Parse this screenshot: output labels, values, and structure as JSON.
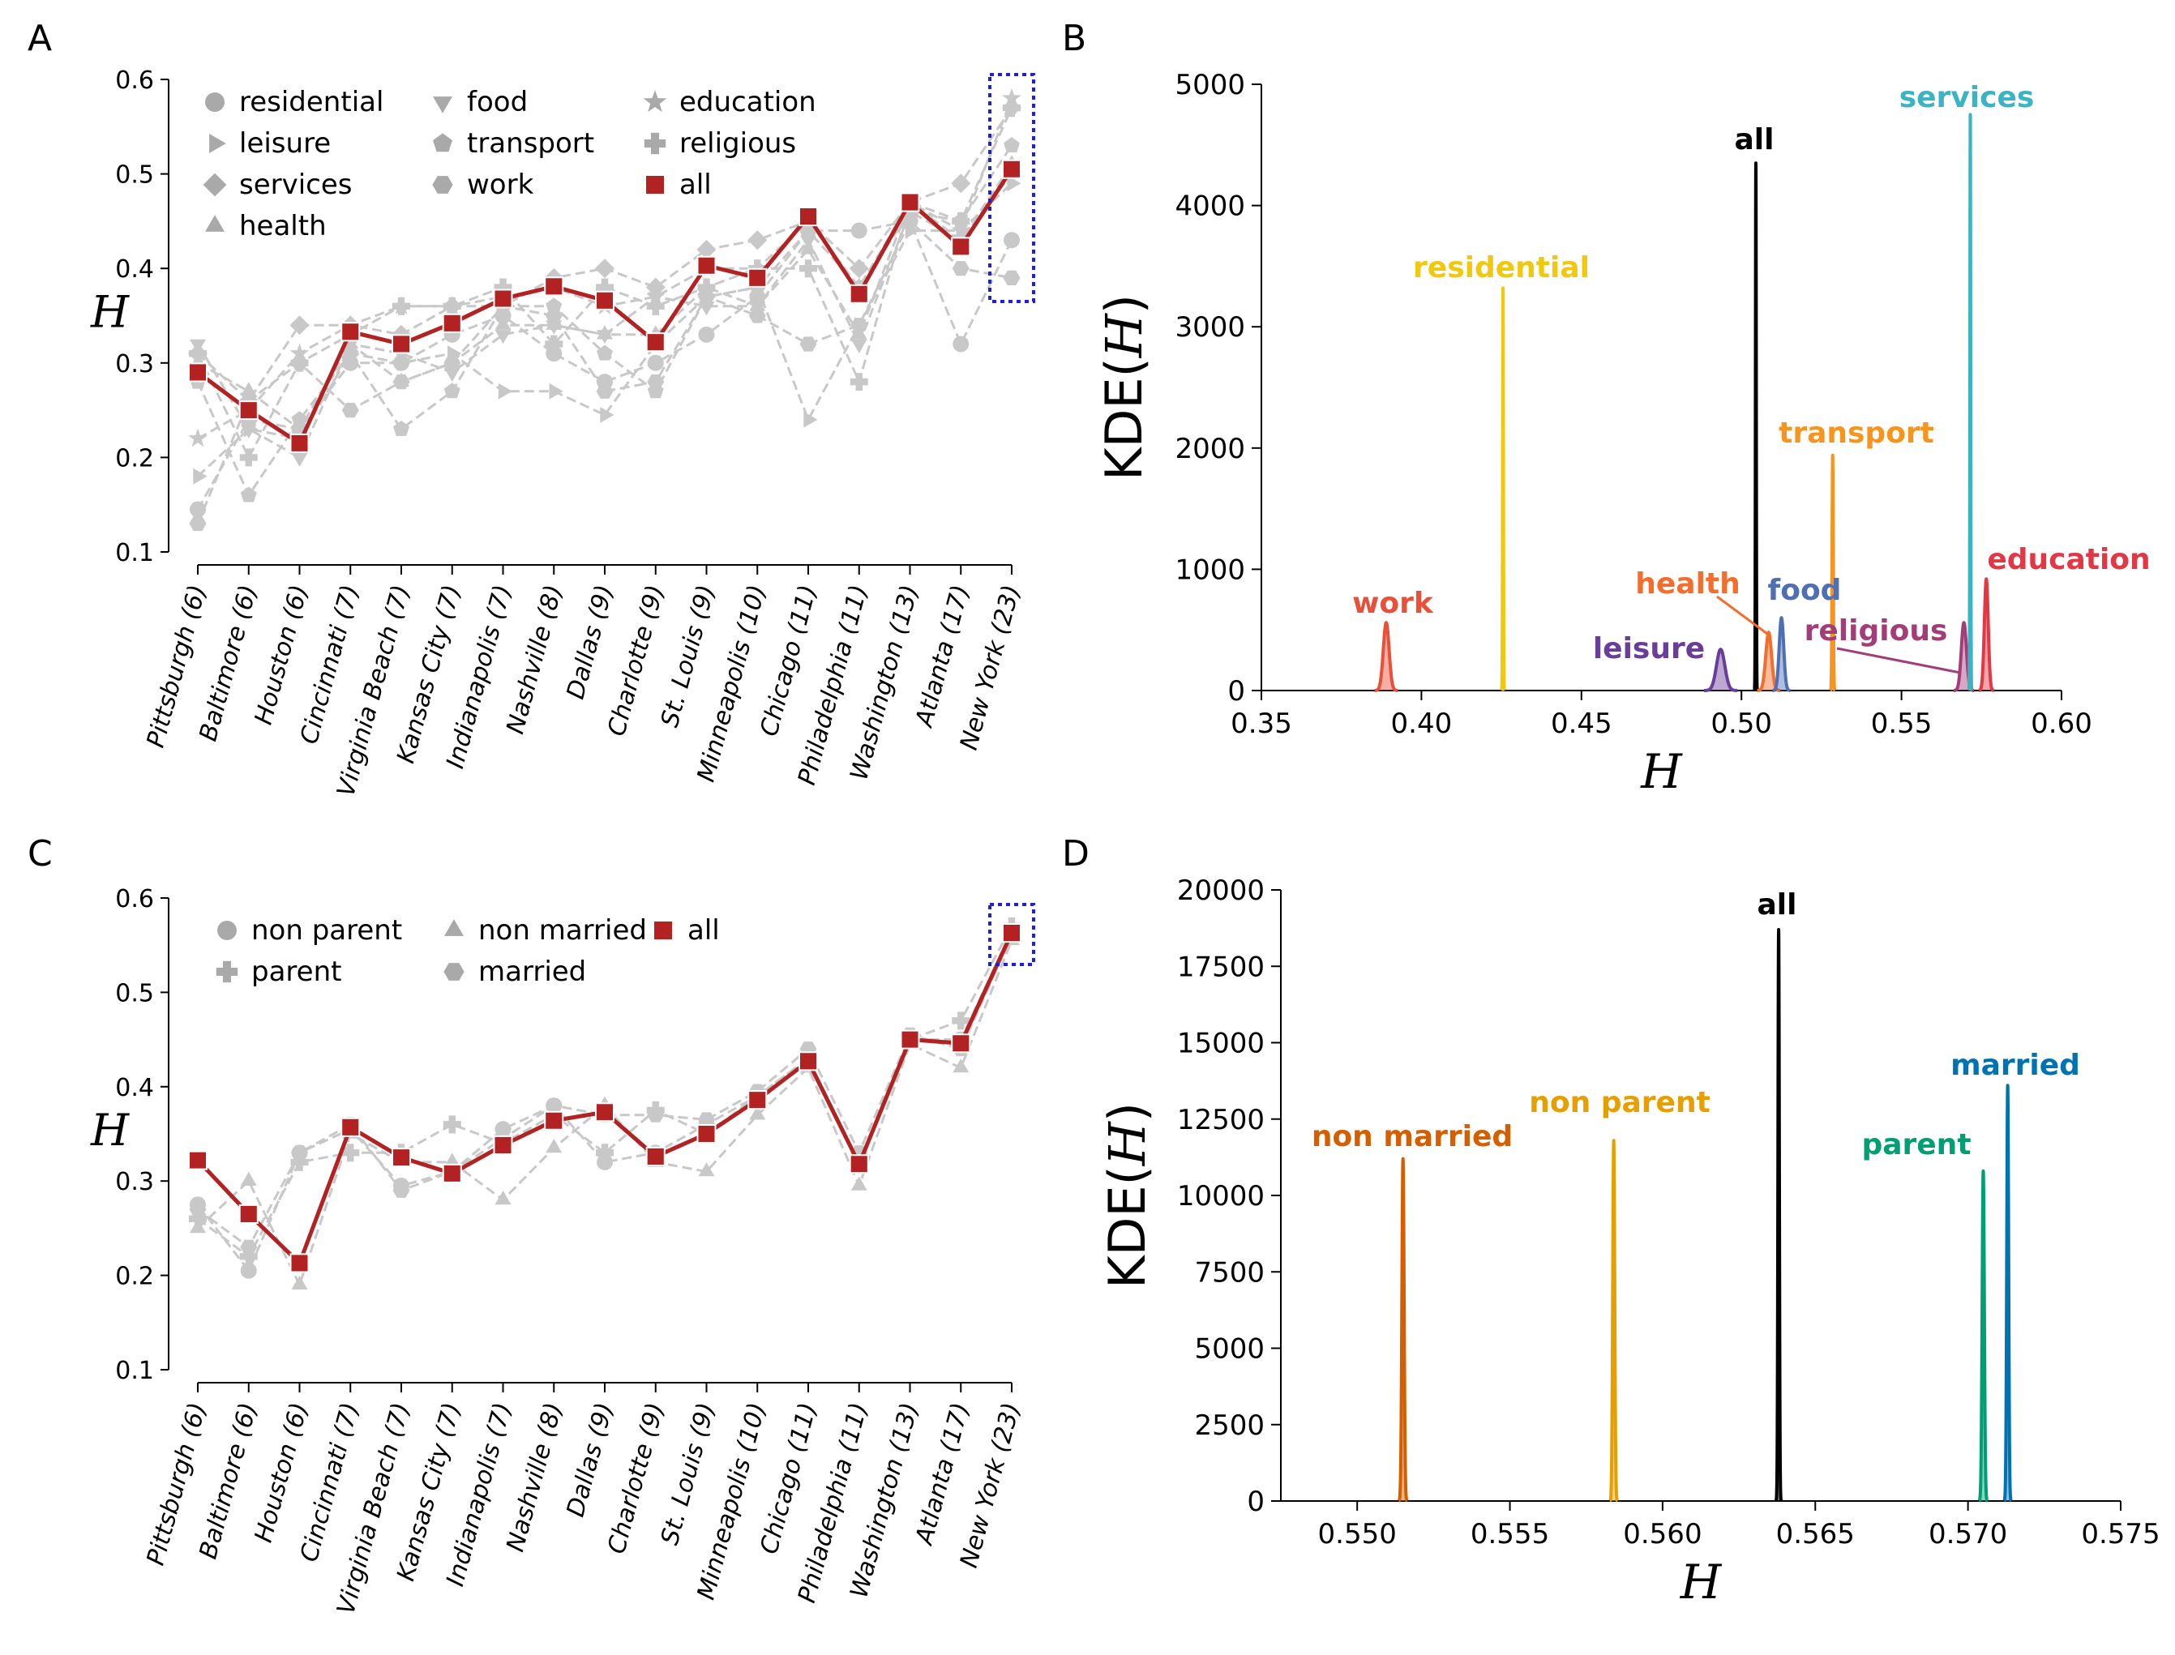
{
  "chart_data": [
    {
      "panel": "A",
      "type": "line",
      "ylabel": "H",
      "ylim": [
        0.1,
        0.6
      ],
      "yticks": [
        "0.1",
        "0.2",
        "0.3",
        "0.4",
        "0.5",
        "0.6"
      ],
      "categories": [
        "Pittsburgh (6)",
        "Baltimore (6)",
        "Houston (6)",
        "Cincinnati (7)",
        "Virginia Beach (7)",
        "Kansas City (7)",
        "Indianapolis (7)",
        "Nashville (8)",
        "Dallas (9)",
        "Charlotte (9)",
        "St. Louis (9)",
        "Minneapolis (10)",
        "Chicago (11)",
        "Philadelphia (11)",
        "Washington (13)",
        "Atlanta (17)",
        "New York (23)"
      ],
      "highlight_category": "New York (23)",
      "legend": [
        "residential",
        "leisure",
        "services",
        "health",
        "food",
        "transport",
        "work",
        "education",
        "religious",
        "all"
      ],
      "series": [
        {
          "name": "residential",
          "marker": "circle",
          "values": [
            0.145,
            0.24,
            0.23,
            0.3,
            0.3,
            0.33,
            0.35,
            0.31,
            0.28,
            0.3,
            0.33,
            0.37,
            0.44,
            0.44,
            0.45,
            0.32,
            0.43
          ]
        },
        {
          "name": "leisure",
          "marker": "triangle-right",
          "values": [
            0.18,
            0.23,
            0.22,
            0.31,
            0.3,
            0.31,
            0.27,
            0.27,
            0.245,
            0.32,
            0.37,
            0.38,
            0.24,
            0.34,
            0.44,
            0.44,
            0.49
          ]
        },
        {
          "name": "services",
          "marker": "diamond",
          "values": [
            0.31,
            0.26,
            0.34,
            0.34,
            0.33,
            0.36,
            0.36,
            0.39,
            0.4,
            0.38,
            0.42,
            0.43,
            0.45,
            0.4,
            0.47,
            0.49,
            0.57
          ]
        },
        {
          "name": "health",
          "marker": "triangle-up",
          "values": [
            0.3,
            0.27,
            0.23,
            0.32,
            0.28,
            0.3,
            0.34,
            0.34,
            0.33,
            0.33,
            0.38,
            0.36,
            0.42,
            0.33,
            0.47,
            0.43,
            0.51
          ]
        },
        {
          "name": "food",
          "marker": "triangle-down",
          "values": [
            0.32,
            0.23,
            0.2,
            0.32,
            0.31,
            0.29,
            0.33,
            0.34,
            0.33,
            0.37,
            0.36,
            0.36,
            0.43,
            0.32,
            0.46,
            0.43,
            0.5
          ]
        },
        {
          "name": "transport",
          "marker": "pentagon",
          "values": [
            0.28,
            0.16,
            0.24,
            0.31,
            0.23,
            0.27,
            0.36,
            0.36,
            0.31,
            0.27,
            0.37,
            0.38,
            0.44,
            0.38,
            0.46,
            0.45,
            0.53
          ]
        },
        {
          "name": "work",
          "marker": "hexagon",
          "values": [
            0.13,
            0.26,
            0.3,
            0.25,
            0.28,
            0.3,
            0.36,
            0.35,
            0.27,
            0.28,
            0.37,
            0.35,
            0.32,
            0.34,
            0.45,
            0.4,
            0.39
          ]
        },
        {
          "name": "education",
          "marker": "star",
          "values": [
            0.22,
            0.25,
            0.31,
            0.34,
            0.36,
            0.36,
            0.37,
            0.38,
            0.36,
            0.37,
            0.4,
            0.4,
            0.45,
            0.38,
            0.47,
            0.44,
            0.58
          ]
        },
        {
          "name": "religious",
          "marker": "plus",
          "values": [
            0.31,
            0.2,
            0.3,
            0.33,
            0.36,
            0.36,
            0.38,
            0.32,
            0.38,
            0.36,
            0.38,
            0.4,
            0.4,
            0.28,
            0.47,
            0.45,
            0.57
          ]
        },
        {
          "name": "all",
          "marker": "square",
          "values": [
            0.29,
            0.25,
            0.215,
            0.333,
            0.32,
            0.342,
            0.368,
            0.381,
            0.366,
            0.322,
            0.403,
            0.39,
            0.455,
            0.373,
            0.47,
            0.423,
            0.505
          ]
        }
      ]
    },
    {
      "panel": "B",
      "type": "area",
      "xlabel": "H",
      "ylabel": "KDE(H)",
      "xlim": [
        0.35,
        0.6
      ],
      "ylim": [
        0,
        5000
      ],
      "xticks": [
        "0.35",
        "0.40",
        "0.45",
        "0.50",
        "0.55",
        "0.60"
      ],
      "yticks": [
        "0",
        "1000",
        "2000",
        "3000",
        "4000",
        "5000"
      ],
      "series": [
        {
          "name": "work",
          "color": "#e8503a",
          "center": 0.389,
          "peak": 560,
          "width": 0.0009
        },
        {
          "name": "residential",
          "color": "#f2c80f",
          "center": 0.4255,
          "peak": 3320,
          "width": 0.00012
        },
        {
          "name": "leisure",
          "color": "#6a3d9a",
          "center": 0.4935,
          "peak": 340,
          "width": 0.0013
        },
        {
          "name": "all",
          "color": "#000000",
          "center": 0.5045,
          "peak": 4350,
          "width": 0.00012
        },
        {
          "name": "health",
          "color": "#f46d2d",
          "center": 0.5085,
          "peak": 480,
          "width": 0.0009
        },
        {
          "name": "food",
          "color": "#4f6fb5",
          "center": 0.5125,
          "peak": 600,
          "width": 0.0007
        },
        {
          "name": "transport",
          "color": "#f7941d",
          "center": 0.5285,
          "peak": 1940,
          "width": 0.00018
        },
        {
          "name": "religious",
          "color": "#a23d7a",
          "center": 0.5695,
          "peak": 560,
          "width": 0.0008
        },
        {
          "name": "services",
          "color": "#3bb3c3",
          "center": 0.5715,
          "peak": 4750,
          "width": 0.00012
        },
        {
          "name": "education",
          "color": "#e23744",
          "center": 0.5765,
          "peak": 920,
          "width": 0.0006
        }
      ]
    },
    {
      "panel": "C",
      "type": "line",
      "ylabel": "H",
      "ylim": [
        0.1,
        0.6
      ],
      "yticks": [
        "0.1",
        "0.2",
        "0.3",
        "0.4",
        "0.5",
        "0.6"
      ],
      "categories": [
        "Pittsburgh (6)",
        "Baltimore (6)",
        "Houston (6)",
        "Cincinnati (7)",
        "Virginia Beach (7)",
        "Kansas City (7)",
        "Indianapolis (7)",
        "Nashville (8)",
        "Dallas (9)",
        "Charlotte (9)",
        "St. Louis (9)",
        "Minneapolis (10)",
        "Chicago (11)",
        "Philadelphia (11)",
        "Washington (13)",
        "Atlanta (17)",
        "New York (23)"
      ],
      "highlight_category": "New York (23)",
      "legend": [
        "non parent",
        "parent",
        "non married",
        "married",
        "all"
      ],
      "series": [
        {
          "name": "non parent",
          "marker": "circle",
          "values": [
            0.275,
            0.205,
            0.33,
            0.355,
            0.295,
            0.31,
            0.355,
            0.38,
            0.32,
            0.33,
            0.36,
            0.39,
            0.43,
            0.32,
            0.45,
            0.45,
            0.565
          ]
        },
        {
          "name": "parent",
          "marker": "plus",
          "values": [
            0.26,
            0.22,
            0.32,
            0.33,
            0.33,
            0.36,
            0.34,
            0.37,
            0.33,
            0.375,
            0.35,
            0.39,
            0.43,
            0.32,
            0.45,
            0.47,
            0.57
          ]
        },
        {
          "name": "non married",
          "marker": "triangle-up",
          "values": [
            0.25,
            0.3,
            0.19,
            0.35,
            0.32,
            0.32,
            0.28,
            0.335,
            0.38,
            0.32,
            0.31,
            0.37,
            0.42,
            0.295,
            0.445,
            0.42,
            0.555
          ]
        },
        {
          "name": "married",
          "marker": "hexagon",
          "values": [
            0.27,
            0.23,
            0.33,
            0.36,
            0.29,
            0.31,
            0.345,
            0.38,
            0.37,
            0.37,
            0.365,
            0.395,
            0.44,
            0.33,
            0.455,
            0.44,
            0.56
          ]
        },
        {
          "name": "all",
          "marker": "square",
          "values": [
            0.322,
            0.265,
            0.213,
            0.357,
            0.325,
            0.308,
            0.338,
            0.364,
            0.373,
            0.326,
            0.35,
            0.386,
            0.427,
            0.318,
            0.45,
            0.446,
            0.563
          ]
        }
      ]
    },
    {
      "panel": "D",
      "type": "area",
      "xlabel": "H",
      "ylabel": "KDE(H)",
      "xlim": [
        0.5475,
        0.575
      ],
      "ylim": [
        0,
        20000
      ],
      "xticks": [
        "0.550",
        "0.555",
        "0.560",
        "0.565",
        "0.570",
        "0.575"
      ],
      "yticks": [
        "0",
        "2500",
        "5000",
        "7500",
        "10000",
        "12500",
        "15000",
        "17500",
        "20000"
      ],
      "series": [
        {
          "name": "non married",
          "color": "#d55e00",
          "center": 0.5515,
          "peak": 11200,
          "width": 3.5e-05
        },
        {
          "name": "non parent",
          "color": "#e69f00",
          "center": 0.5584,
          "peak": 11800,
          "width": 3.2e-05
        },
        {
          "name": "all",
          "color": "#000000",
          "center": 0.5638,
          "peak": 18700,
          "width": 2.2e-05
        },
        {
          "name": "parent",
          "color": "#009e73",
          "center": 0.5705,
          "peak": 10800,
          "width": 3.5e-05
        },
        {
          "name": "married",
          "color": "#0072b2",
          "center": 0.5713,
          "peak": 13600,
          "width": 3e-05
        }
      ]
    }
  ],
  "panel_letters": {
    "a": "A",
    "b": "B",
    "c": "C",
    "d": "D"
  },
  "label_text": {
    "b_work": "work",
    "b_residential": "residential",
    "b_leisure": "leisure",
    "b_all": "all",
    "b_health": "health",
    "b_food": "food",
    "b_transport": "transport",
    "b_religious": "religious",
    "b_services": "services",
    "b_education": "education",
    "d_non_married": "non married",
    "d_non_parent": "non parent",
    "d_all": "all",
    "d_parent": "parent",
    "d_married": "married"
  },
  "colors": {
    "all_line": "#b22222",
    "gray": "#c8c8c8",
    "highlight_box": "#1f1fe0"
  }
}
